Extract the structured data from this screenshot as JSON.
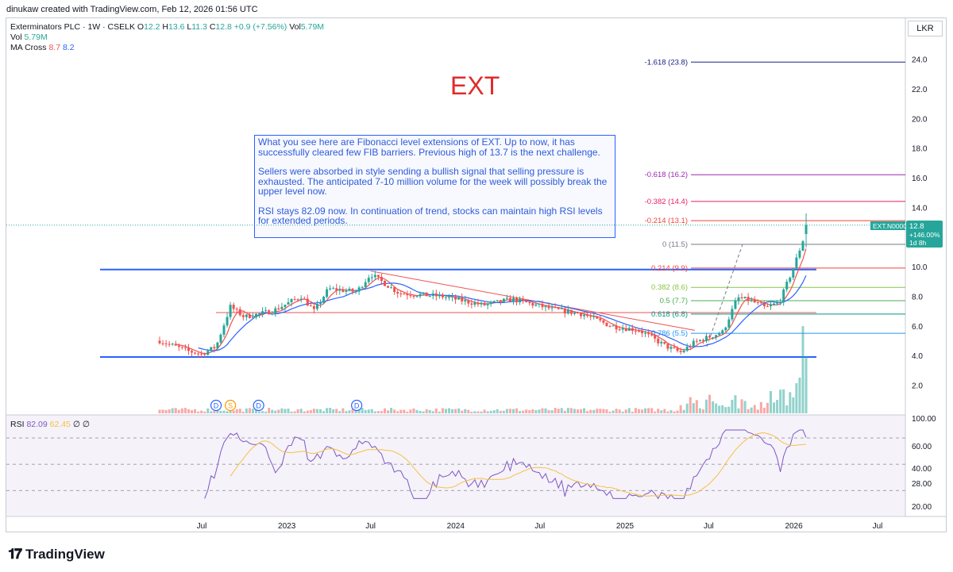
{
  "header": {
    "creator_line": "dinukaw created with TradingView.com, Feb 12, 2026 01:56 UTC"
  },
  "legend": {
    "symbol": "Exterminators PLC · 1W · CSELK",
    "ohlc_parts": [
      {
        "label": "O",
        "value": "12.2"
      },
      {
        "label": "H",
        "value": "13.6"
      },
      {
        "label": "L",
        "value": "11.3"
      },
      {
        "label": "C",
        "value": "12.8"
      }
    ],
    "change": "+0.9 (+7.56%)",
    "vol_inline_label": "Vol",
    "vol_inline_value": "5.79M",
    "vol_label": "Vol",
    "vol_value": "5.79M",
    "ma_label": "MA Cross",
    "ma_fast": "8.7",
    "ma_slow": "8.2"
  },
  "currency": "LKR",
  "title_text": "EXT",
  "note": {
    "para1": "What you see here are Fibonacci level extensions of EXT. Up to now, it has successfully cleared few FIB barriers. Previous high of 13.7 is the next challenge.",
    "para2": "Sellers were absorbed in style sending a bullish signal that selling pressure is exhausted. The anticipated 7-10 million volume for the week will possibly break the upper level now.",
    "para3": "RSI stays 82.09 now. In continuation of trend, stocks can maintain high RSI levels for extended periods."
  },
  "price_tag": {
    "symbol": "EXT.N0000",
    "price": "12.8",
    "change": "+146.00%",
    "countdown": "1d 8h"
  },
  "rsi_legend": {
    "label": "RSI",
    "value": "82.09",
    "ma": "62.45",
    "extra1": "∅",
    "extra2": "∅"
  },
  "brand": "TradingView",
  "colors": {
    "up": "#26a69a",
    "down": "#ef5350",
    "rsi": "#7e57c2",
    "rsi_ma": "#f5c242",
    "ma_fast": "#ef5350",
    "ma_slow": "#2962ff",
    "title": "#e02b2b",
    "support": "#2962ff"
  },
  "chart_data": {
    "type": "candlestick",
    "price_axis_ticks": [
      "24.0",
      "22.0",
      "20.0",
      "18.0",
      "16.0",
      "14.0",
      "12.0",
      "10.0",
      "8.0",
      "6.0",
      "4.0",
      "2.0"
    ],
    "rsi_axis_ticks": [
      "100.00",
      "60.00",
      "40.00",
      "28.00",
      "20.00"
    ],
    "time_ticks": [
      {
        "label": "Jul",
        "date": "2022-07"
      },
      {
        "label": "2023",
        "date": "2023-01"
      },
      {
        "label": "Jul",
        "date": "2023-07"
      },
      {
        "label": "2024",
        "date": "2024-01"
      },
      {
        "label": "Jul",
        "date": "2024-07"
      },
      {
        "label": "2025",
        "date": "2025-01"
      },
      {
        "label": "Jul",
        "date": "2025-07"
      },
      {
        "label": "2026",
        "date": "2026-01"
      },
      {
        "label": "Jul",
        "date": "2026-07"
      }
    ],
    "fib_levels": [
      {
        "label": "-1.618 (23.8)",
        "price": 23.8,
        "color": "#1a237e"
      },
      {
        "label": "-0.618 (16.2)",
        "price": 16.2,
        "color": "#9c27b0"
      },
      {
        "label": "-0.382 (14.4)",
        "price": 14.4,
        "color": "#e91e63"
      },
      {
        "label": "-0.214 (13.1)",
        "price": 13.1,
        "color": "#f44336"
      },
      {
        "label": "0 (11.5)",
        "price": 11.5,
        "color": "#787b86"
      },
      {
        "label": "0.214 (9.9)",
        "price": 9.9,
        "color": "#f44336"
      },
      {
        "label": "0.382 (8.6)",
        "price": 8.6,
        "color": "#8bc34a"
      },
      {
        "label": "0.5 (7.7)",
        "price": 7.7,
        "color": "#4caf50"
      },
      {
        "label": "0.618 (6.8)",
        "price": 6.8,
        "color": "#009688"
      },
      {
        "label": "0.786 (5.5)",
        "price": 5.5,
        "color": "#2196f3"
      }
    ],
    "horizontal_lines": [
      {
        "price": 9.8,
        "from": "2022-04",
        "color": "#2962ff"
      },
      {
        "price": 3.9,
        "from": "2022-04",
        "color": "#2962ff"
      },
      {
        "price": 6.9,
        "from": "2022-08",
        "color": "#ef5350"
      }
    ],
    "trendline": {
      "from": [
        "2023-07",
        9.7
      ],
      "to": [
        "2025-06",
        5.7
      ]
    },
    "dividend_markers": [
      {
        "date": "2022-08",
        "label": "D"
      },
      {
        "date": "2022-09",
        "label": "S"
      },
      {
        "date": "2022-11",
        "label": "D"
      },
      {
        "date": "2023-06",
        "label": "D"
      }
    ],
    "last_price": 12.8
  }
}
